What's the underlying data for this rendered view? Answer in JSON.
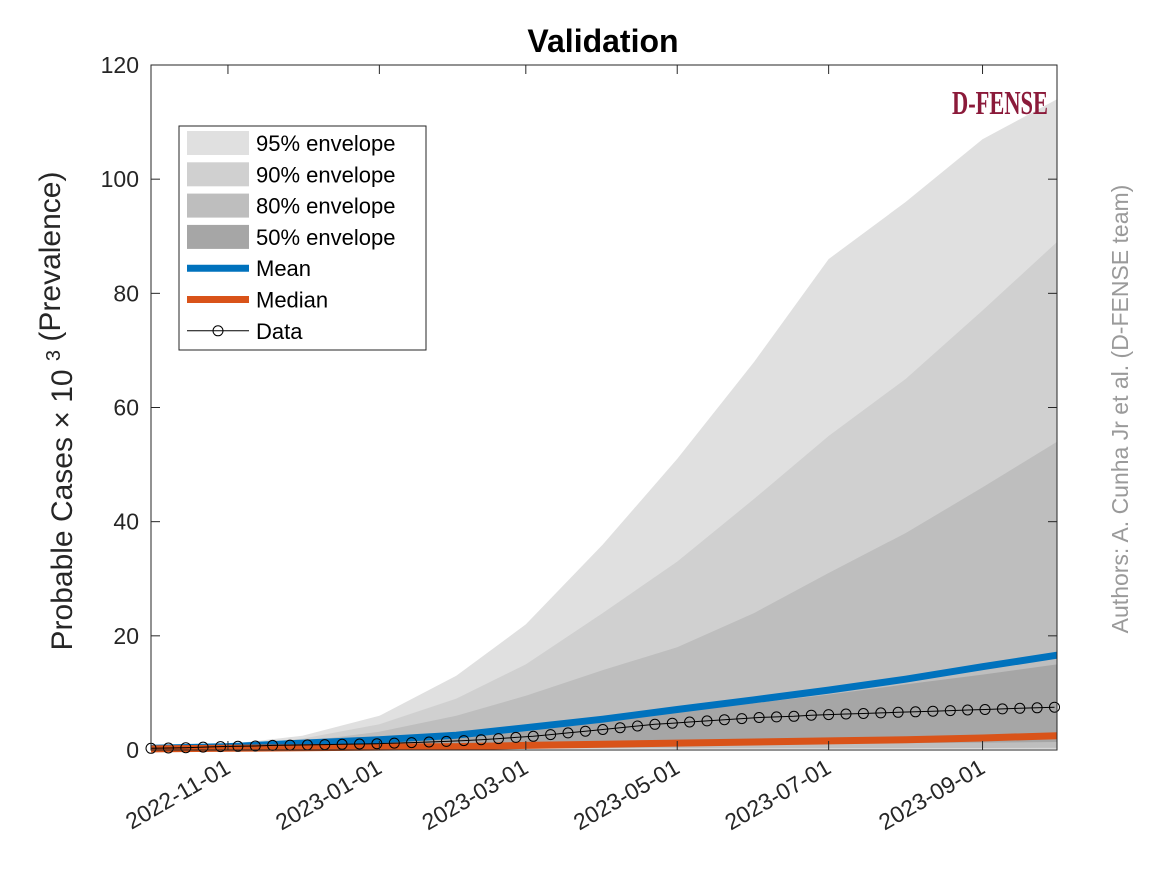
{
  "chart_data": {
    "type": "area",
    "title": "Validation",
    "ylabel_prefix": "Probable Cases",
    "ylabel_times": "×",
    "ylabel_base": "10",
    "ylabel_exp": "3",
    "ylabel_suffix": "(Prevalence)",
    "credit": "Authors: A. Cunha Jr et al. (D-FENSE team)",
    "logo_text": "D-FENSE",
    "xlim": [
      "2022-10-01",
      "2023-10-01"
    ],
    "ylim": [
      0,
      120
    ],
    "yticks": [
      0,
      20,
      40,
      60,
      80,
      100,
      120
    ],
    "xticks": [
      "2022-11-01",
      "2023-01-01",
      "2023-03-01",
      "2023-05-01",
      "2023-07-01",
      "2023-09-01"
    ],
    "x": [
      "2022-10-01",
      "2022-11-01",
      "2022-12-01",
      "2023-01-01",
      "2023-02-01",
      "2023-03-01",
      "2023-04-01",
      "2023-05-01",
      "2023-06-01",
      "2023-07-01",
      "2023-08-01",
      "2023-09-01",
      "2023-10-01"
    ],
    "envelopes": [
      {
        "name": "95% envelope",
        "color": "#e0e0e0",
        "upper": [
          0.8,
          1.0,
          2.5,
          6,
          13,
          22,
          36,
          51,
          68,
          86,
          96,
          107,
          114
        ],
        "lower": [
          0.2,
          0.2,
          0.2,
          0.2,
          0.2,
          0.2,
          0.2,
          0.2,
          0.2,
          0.2,
          0.2,
          0.2,
          0.2
        ]
      },
      {
        "name": "90% envelope",
        "color": "#d0d0d0",
        "upper": [
          0.6,
          0.8,
          2.0,
          4.5,
          9,
          15,
          24,
          33,
          44,
          55,
          65,
          77,
          89
        ],
        "lower": [
          0.25,
          0.25,
          0.25,
          0.25,
          0.25,
          0.25,
          0.25,
          0.25,
          0.25,
          0.25,
          0.25,
          0.25,
          0.25
        ]
      },
      {
        "name": "80% envelope",
        "color": "#bebebe",
        "upper": [
          0.5,
          0.7,
          1.5,
          3.2,
          6,
          9.5,
          14,
          18,
          24,
          31,
          38,
          46,
          54
        ],
        "lower": [
          0.3,
          0.3,
          0.3,
          0.3,
          0.3,
          0.3,
          0.3,
          0.3,
          0.3,
          0.3,
          0.3,
          0.35,
          0.4
        ]
      },
      {
        "name": "50% envelope",
        "color": "#a6a6a6",
        "upper": [
          0.4,
          0.6,
          1.1,
          2.0,
          3.0,
          4.2,
          5.6,
          6.8,
          8.2,
          9.7,
          11.5,
          13.2,
          15.0
        ],
        "lower": [
          0.3,
          0.35,
          0.4,
          0.5,
          0.6,
          0.7,
          0.8,
          0.9,
          1.0,
          1.1,
          1.2,
          1.3,
          1.4
        ]
      }
    ],
    "series": [
      {
        "name": "Mean",
        "color": "#0072bd",
        "values": [
          0.3,
          0.6,
          1.2,
          1.8,
          2.6,
          3.9,
          5.4,
          7.1,
          8.8,
          10.5,
          12.4,
          14.6,
          16.6
        ]
      },
      {
        "name": "Median",
        "color": "#d95319",
        "values": [
          0.2,
          0.3,
          0.4,
          0.5,
          0.6,
          0.8,
          1.0,
          1.2,
          1.4,
          1.6,
          1.8,
          2.1,
          2.5
        ]
      }
    ],
    "data_series": {
      "name": "Data",
      "color": "#000000",
      "x": [
        "2022-10-01",
        "2022-10-08",
        "2022-10-15",
        "2022-10-22",
        "2022-10-29",
        "2022-11-05",
        "2022-11-12",
        "2022-11-19",
        "2022-11-26",
        "2022-12-03",
        "2022-12-10",
        "2022-12-17",
        "2022-12-24",
        "2022-12-31",
        "2023-01-07",
        "2023-01-14",
        "2023-01-21",
        "2023-01-28",
        "2023-02-04",
        "2023-02-11",
        "2023-02-18",
        "2023-02-25",
        "2023-03-04",
        "2023-03-11",
        "2023-03-18",
        "2023-03-25",
        "2023-04-01",
        "2023-04-08",
        "2023-04-15",
        "2023-04-22",
        "2023-04-29",
        "2023-05-06",
        "2023-05-13",
        "2023-05-20",
        "2023-05-27",
        "2023-06-03",
        "2023-06-10",
        "2023-06-17",
        "2023-06-24",
        "2023-07-01",
        "2023-07-08",
        "2023-07-15",
        "2023-07-22",
        "2023-07-29",
        "2023-08-05",
        "2023-08-12",
        "2023-08-19",
        "2023-08-26",
        "2023-09-02",
        "2023-09-09",
        "2023-09-16",
        "2023-09-23",
        "2023-09-30"
      ],
      "values": [
        0.3,
        0.35,
        0.4,
        0.5,
        0.6,
        0.65,
        0.7,
        0.8,
        0.85,
        0.9,
        0.95,
        1.0,
        1.05,
        1.1,
        1.2,
        1.3,
        1.4,
        1.5,
        1.65,
        1.8,
        2.0,
        2.2,
        2.4,
        2.7,
        3.0,
        3.3,
        3.6,
        3.9,
        4.2,
        4.5,
        4.7,
        4.9,
        5.1,
        5.3,
        5.5,
        5.7,
        5.8,
        5.9,
        6.1,
        6.2,
        6.3,
        6.4,
        6.5,
        6.6,
        6.7,
        6.8,
        6.9,
        7.0,
        7.1,
        7.2,
        7.3,
        7.4,
        7.5
      ]
    },
    "legend_position": "top-left",
    "grid": false
  }
}
